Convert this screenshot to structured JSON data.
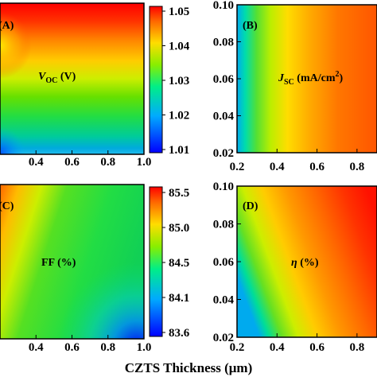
{
  "chart_data": [
    {
      "type": "heatmap",
      "panel": "(A)",
      "label_main": "V",
      "label_sub": "OC",
      "label_tail": " (V)",
      "xlim": [
        0.2,
        1.0
      ],
      "ylim": [
        0.02,
        0.1
      ],
      "x_ticks": [
        "0.4",
        "0.6",
        "0.8",
        "1.0"
      ],
      "y_ticks": [],
      "colorbar": {
        "min": 1.01,
        "max": 1.05,
        "ticks": [
          "1.05",
          "1.04",
          "1.03",
          "1.02",
          "1.01"
        ]
      }
    },
    {
      "type": "heatmap",
      "panel": "(B)",
      "label_main": "J",
      "label_sub": "SC",
      "label_tail": " (mA/cm",
      "label_sup": "2",
      "label_end": ")",
      "xlim": [
        0.2,
        0.9
      ],
      "ylim": [
        0.02,
        0.1
      ],
      "x_ticks": [
        "0.2",
        "0.4",
        "0.6",
        "0.8"
      ],
      "y_ticks": [
        "0.10",
        "0.08",
        "0.06",
        "0.04",
        "0.02"
      ]
    },
    {
      "type": "heatmap",
      "panel": "(C)",
      "label_main": "FF (%)",
      "xlim": [
        0.2,
        1.0
      ],
      "ylim": [
        0.02,
        0.1
      ],
      "x_ticks": [
        "0.4",
        "0.6",
        "0.8",
        "1.0"
      ],
      "y_ticks": [],
      "colorbar": {
        "min": 83.6,
        "max": 85.5,
        "ticks": [
          "85.5",
          "85.0",
          "84.5",
          "84.1",
          "83.6"
        ]
      }
    },
    {
      "type": "heatmap",
      "panel": "(D)",
      "label_main": "η",
      "label_tail": " (%)",
      "xlim": [
        0.2,
        0.9
      ],
      "ylim": [
        0.02,
        0.1
      ],
      "x_ticks": [
        "0.2",
        "0.4",
        "0.6",
        "0.8"
      ],
      "y_ticks": [
        "0.10",
        "0.08",
        "0.06",
        "0.04",
        "0.02"
      ]
    }
  ],
  "xlabel_main": "CZTS Thickness (",
  "xlabel_unit": "μ",
  "xlabel_end": "m)"
}
